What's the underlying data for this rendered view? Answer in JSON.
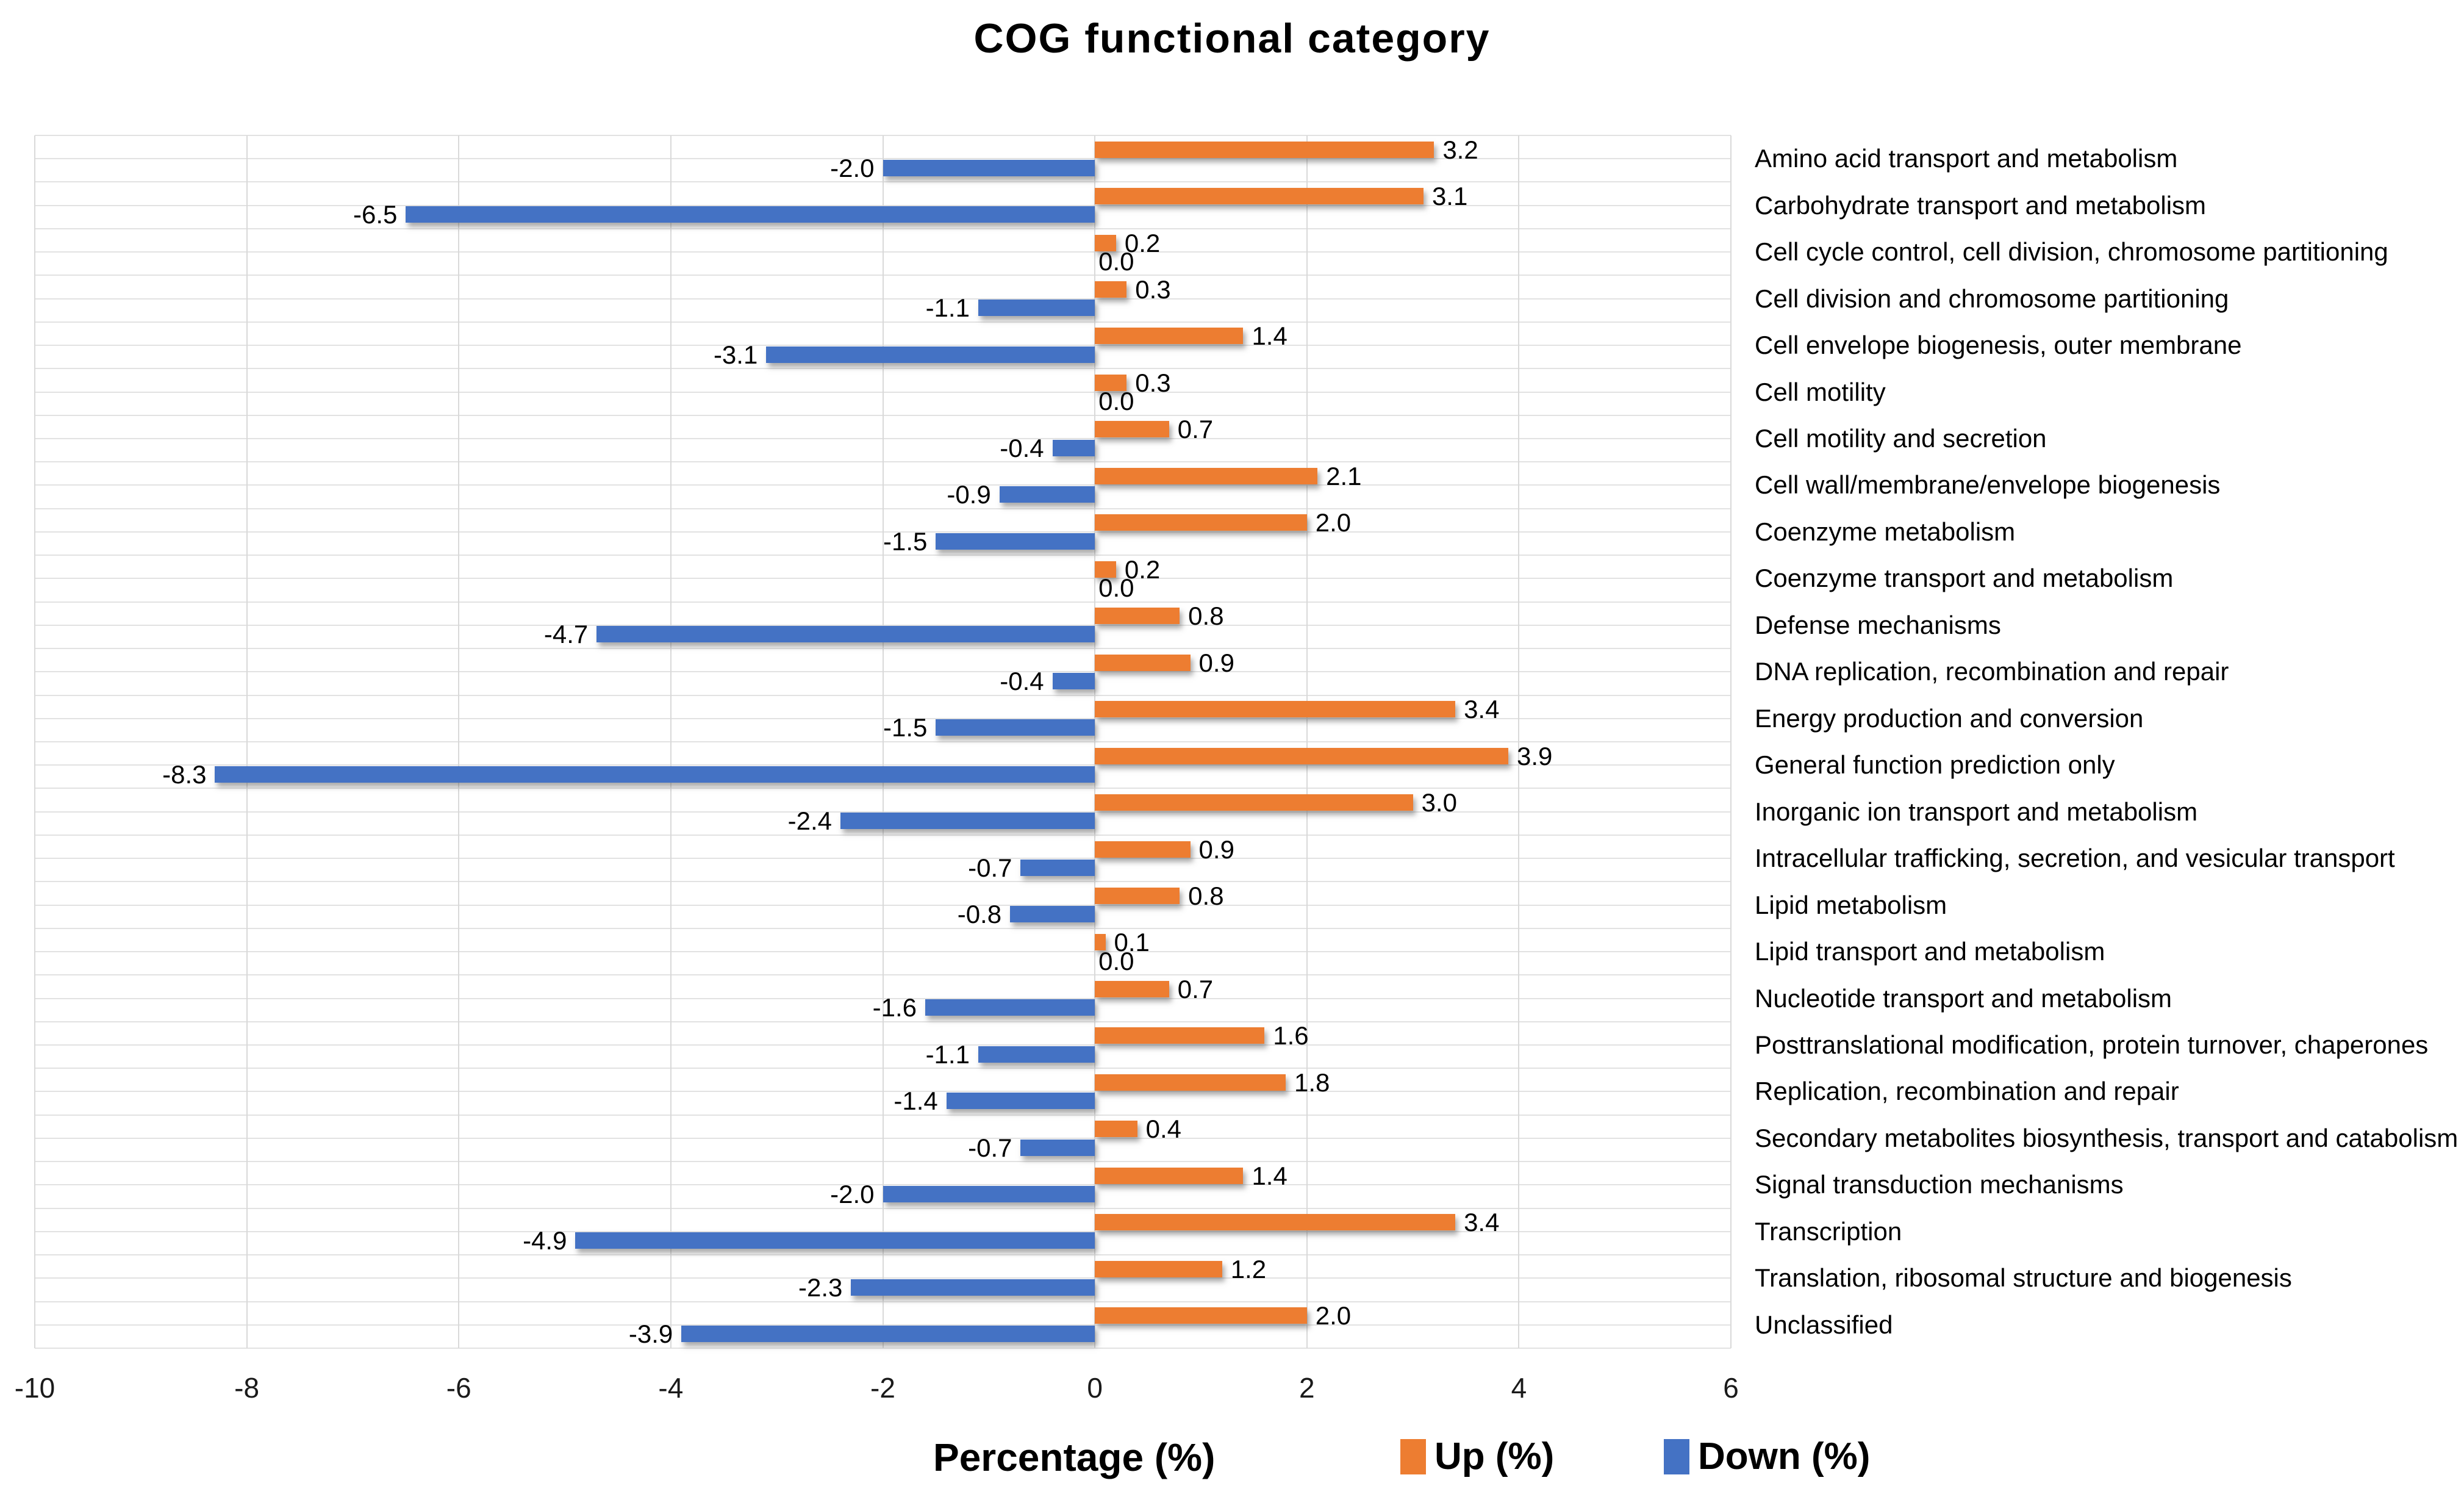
{
  "chart_data": {
    "type": "bar",
    "orientation": "horizontal-diverging",
    "title": "COG functional category",
    "xlabel": "Percentage (%)",
    "xlim": [
      -10,
      6
    ],
    "xticks": [
      -10,
      -8,
      -6,
      -4,
      -2,
      0,
      2,
      4,
      6
    ],
    "grid": "on",
    "legend_position": "bottom",
    "legend": [
      {
        "name": "Up (%)",
        "color": "#ED7D31"
      },
      {
        "name": "Down (%)",
        "color": "#4472C4"
      }
    ],
    "categories": [
      "Amino acid transport and metabolism",
      "Carbohydrate transport and metabolism",
      "Cell cycle control, cell division, chromosome partitioning",
      "Cell division and chromosome partitioning",
      "Cell envelope biogenesis, outer membrane",
      "Cell motility",
      "Cell motility and secretion",
      "Cell wall/membrane/envelope biogenesis",
      "Coenzyme metabolism",
      "Coenzyme transport and metabolism",
      "Defense mechanisms",
      "DNA replication, recombination and repair",
      "Energy production and conversion",
      "General function prediction only",
      "Inorganic ion transport and metabolism",
      "Intracellular trafficking, secretion, and vesicular transport",
      "Lipid metabolism",
      "Lipid transport and metabolism",
      "Nucleotide transport and metabolism",
      "Posttranslational modification, protein turnover, chaperones",
      "Replication, recombination and repair",
      "Secondary metabolites biosynthesis, transport and catabolism",
      "Signal transduction mechanisms",
      "Transcription",
      "Translation, ribosomal structure and biogenesis",
      "Unclassified"
    ],
    "series": [
      {
        "name": "Up (%)",
        "color": "#ED7D31",
        "values": [
          3.2,
          3.1,
          0.2,
          0.3,
          1.4,
          0.3,
          0.7,
          2.1,
          2.0,
          0.2,
          0.8,
          0.9,
          3.4,
          3.9,
          3.0,
          0.9,
          0.8,
          0.1,
          0.7,
          1.6,
          1.8,
          0.4,
          1.4,
          3.4,
          1.2,
          2.0
        ]
      },
      {
        "name": "Down (%)",
        "color": "#4472C4",
        "values": [
          -2.0,
          -6.5,
          0.0,
          -1.1,
          -3.1,
          0.0,
          -0.4,
          -0.9,
          -1.5,
          0.0,
          -4.7,
          -0.4,
          -1.5,
          -8.3,
          -2.4,
          -0.7,
          -0.8,
          0.0,
          -1.6,
          -1.1,
          -1.4,
          -0.7,
          -2.0,
          -4.9,
          -2.3,
          -3.9
        ]
      }
    ]
  }
}
